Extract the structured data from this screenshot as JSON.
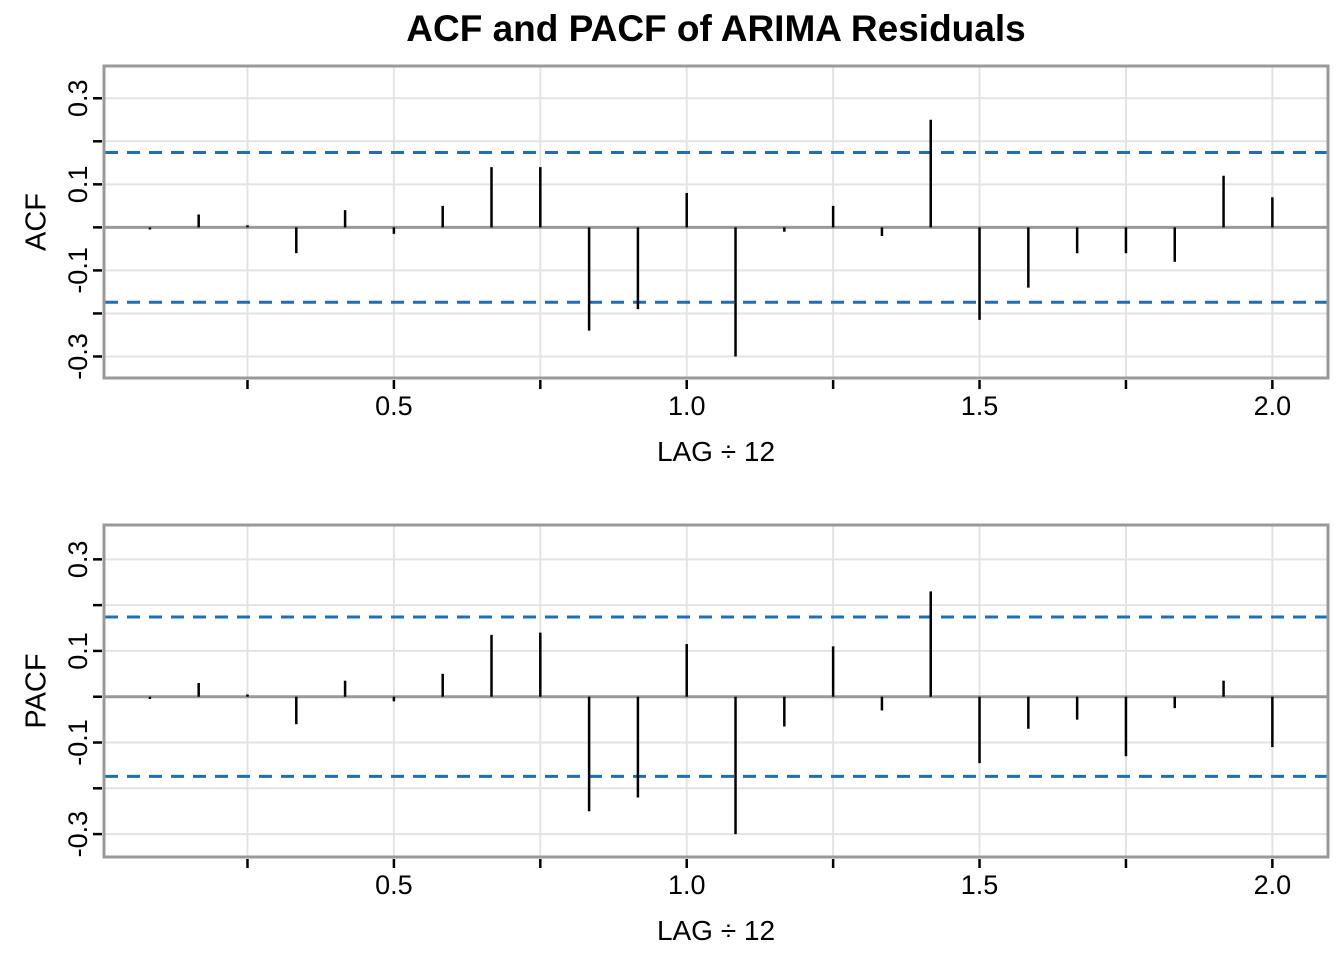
{
  "title": "ACF and PACF of ARIMA Residuals",
  "colors": {
    "spike": "#000000",
    "confidence_line": "#1d6fb8",
    "grid_line": "#e3e3e3",
    "axis_line": "#999999",
    "text": "#000000",
    "background": "#ffffff"
  },
  "chart_data": [
    {
      "type": "bar",
      "subtype": "acf-spike-plot",
      "panel_label": "ACF",
      "xlabel": "LAG ÷ 12",
      "ylabel": "ACF",
      "x_unit": "lag/12",
      "lags": [
        1,
        2,
        3,
        4,
        5,
        6,
        7,
        8,
        9,
        10,
        11,
        12,
        13,
        14,
        15,
        16,
        17,
        18,
        19,
        20,
        21,
        22,
        23,
        24
      ],
      "values": [
        -0.005,
        0.03,
        0.005,
        -0.06,
        0.04,
        -0.015,
        0.05,
        0.14,
        0.14,
        -0.24,
        -0.19,
        0.08,
        -0.3,
        -0.01,
        0.05,
        -0.02,
        0.25,
        -0.215,
        -0.14,
        -0.06,
        -0.06,
        -0.08,
        0.12,
        0.07
      ],
      "confidence_bound": 0.174,
      "confidence_style": "dashed",
      "xlim": [
        0.005,
        2.095
      ],
      "ylim": [
        -0.35,
        0.375
      ],
      "x_ticks": [
        0.25,
        0.5,
        0.75,
        1.0,
        1.25,
        1.5,
        1.75,
        2.0
      ],
      "x_tick_labels": [
        {
          "v": 0.5,
          "t": "0.5"
        },
        {
          "v": 1.0,
          "t": "1.0"
        },
        {
          "v": 1.5,
          "t": "1.5"
        },
        {
          "v": 2.0,
          "t": "2.0"
        }
      ],
      "y_ticks": [
        -0.3,
        -0.2,
        -0.1,
        0,
        0.1,
        0.2,
        0.3
      ],
      "y_tick_labels": [
        {
          "v": 0.3,
          "t": "0.3"
        },
        {
          "v": 0.1,
          "t": "0.1"
        },
        {
          "v": -0.1,
          "t": "-0.1"
        },
        {
          "v": -0.3,
          "t": "-0.3"
        }
      ],
      "grid": true,
      "legend": "none"
    },
    {
      "type": "bar",
      "subtype": "acf-spike-plot",
      "panel_label": "PACF",
      "xlabel": "LAG ÷ 12",
      "ylabel": "PACF",
      "x_unit": "lag/12",
      "lags": [
        1,
        2,
        3,
        4,
        5,
        6,
        7,
        8,
        9,
        10,
        11,
        12,
        13,
        14,
        15,
        16,
        17,
        18,
        19,
        20,
        21,
        22,
        23,
        24
      ],
      "values": [
        -0.005,
        0.03,
        0.005,
        -0.06,
        0.035,
        -0.01,
        0.05,
        0.135,
        0.14,
        -0.25,
        -0.22,
        0.115,
        -0.3,
        -0.065,
        0.11,
        -0.03,
        0.23,
        -0.145,
        -0.07,
        -0.05,
        -0.13,
        -0.025,
        0.035,
        -0.11
      ],
      "confidence_bound": 0.174,
      "confidence_style": "dashed",
      "xlim": [
        0.005,
        2.095
      ],
      "ylim": [
        -0.35,
        0.375
      ],
      "x_ticks": [
        0.25,
        0.5,
        0.75,
        1.0,
        1.25,
        1.5,
        1.75,
        2.0
      ],
      "x_tick_labels": [
        {
          "v": 0.5,
          "t": "0.5"
        },
        {
          "v": 1.0,
          "t": "1.0"
        },
        {
          "v": 1.5,
          "t": "1.5"
        },
        {
          "v": 2.0,
          "t": "2.0"
        }
      ],
      "y_ticks": [
        -0.3,
        -0.2,
        -0.1,
        0,
        0.1,
        0.2,
        0.3
      ],
      "y_tick_labels": [
        {
          "v": 0.3,
          "t": "0.3"
        },
        {
          "v": 0.1,
          "t": "0.1"
        },
        {
          "v": -0.1,
          "t": "-0.1"
        },
        {
          "v": -0.3,
          "t": "-0.3"
        }
      ],
      "grid": true,
      "legend": "none"
    }
  ]
}
